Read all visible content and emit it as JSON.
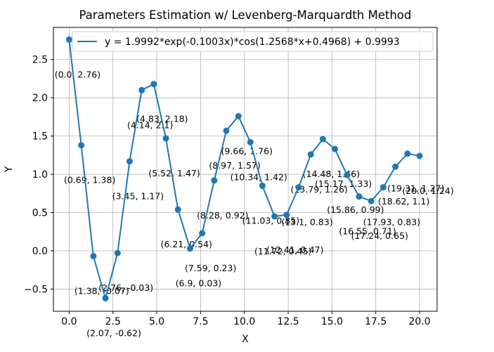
{
  "chart_data": {
    "type": "line",
    "title": "Parameters Estimation w/ Levenberg-Marquardth Method",
    "xlabel": "X",
    "ylabel": "Y",
    "xlim": [
      -0.9,
      21.0
    ],
    "ylim": [
      -0.79,
      2.92
    ],
    "xticks": [
      "0.0",
      "2.5",
      "5.0",
      "7.5",
      "10.0",
      "12.5",
      "15.0",
      "17.5",
      "20.0"
    ],
    "xtick_values": [
      0,
      2.5,
      5,
      7.5,
      10,
      12.5,
      15,
      17.5,
      20
    ],
    "yticks": [
      "−0.5",
      "0.0",
      "0.5",
      "1.0",
      "1.5",
      "2.0",
      "2.5"
    ],
    "ytick_values": [
      -0.5,
      0,
      0.5,
      1.0,
      1.5,
      2.0,
      2.5
    ],
    "grid": true,
    "legend_position": "top-right",
    "color": "#1f77b4",
    "series": [
      {
        "name": "y = 1.9992*exp(-0.1003x)*cos(1.2568*x+0.4968) + 0.9993",
        "x": [
          0.0,
          0.69,
          1.38,
          2.07,
          2.76,
          3.45,
          4.14,
          4.83,
          5.52,
          6.21,
          6.9,
          7.59,
          8.28,
          8.97,
          9.66,
          10.34,
          11.03,
          11.72,
          12.41,
          13.1,
          13.79,
          14.48,
          15.17,
          15.86,
          16.55,
          17.24,
          17.93,
          18.62,
          19.31,
          20.0
        ],
        "y": [
          2.76,
          1.38,
          -0.07,
          -0.62,
          -0.03,
          1.17,
          2.1,
          2.18,
          1.47,
          0.54,
          0.03,
          0.23,
          0.92,
          1.57,
          1.76,
          1.42,
          0.85,
          0.45,
          0.47,
          0.83,
          1.26,
          1.46,
          1.33,
          0.99,
          0.71,
          0.65,
          0.83,
          1.1,
          1.27,
          1.24
        ]
      }
    ],
    "annotations": [
      "(0.0, 2.76)",
      "(0.69, 1.38)",
      "(1.38, -0.07)",
      "(2.07, -0.62)",
      "(2.76, -0.03)",
      "(3.45, 1.17)",
      "(4.14, 2.1)",
      "(4.83, 2.18)",
      "(5.52, 1.47)",
      "(6.21, 0.54)",
      "(6.9, 0.03)",
      "(7.59, 0.23)",
      "(8.28, 0.92)",
      "(8.97, 1.57)",
      "(9.66, 1.76)",
      "(10.34, 1.42)",
      "(11.03, 0.85)",
      "(11.72, 0.45)",
      "(12.41, 0.47)",
      "(13.1, 0.83)",
      "(13.79, 1.26)",
      "(14.48, 1.46)",
      "(15.17, 1.33)",
      "(15.86, 0.99)",
      "(16.55, 0.71)",
      "(17.24, 0.65)",
      "(17.93, 0.83)",
      "(18.62, 1.1)",
      "(19.31, 1.27)",
      "(20.0, 1.24)"
    ]
  }
}
